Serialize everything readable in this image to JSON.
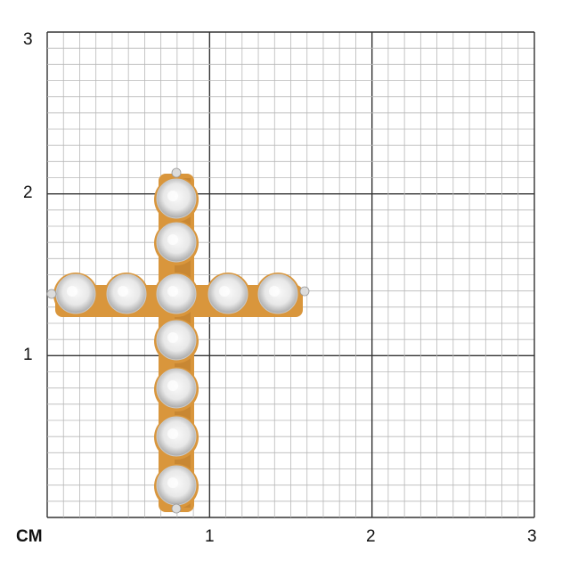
{
  "scale": {
    "unit": "CM",
    "x_labels": [
      "1",
      "2",
      "3"
    ],
    "y_labels": [
      "1",
      "2",
      "3"
    ],
    "range_cm": [
      0,
      3
    ],
    "minor_divisions_per_cm": 10
  },
  "product": {
    "icon": "diamond-cross-pendant",
    "metal_color": "#d9963c",
    "stone_color": "#e8e8e8"
  }
}
